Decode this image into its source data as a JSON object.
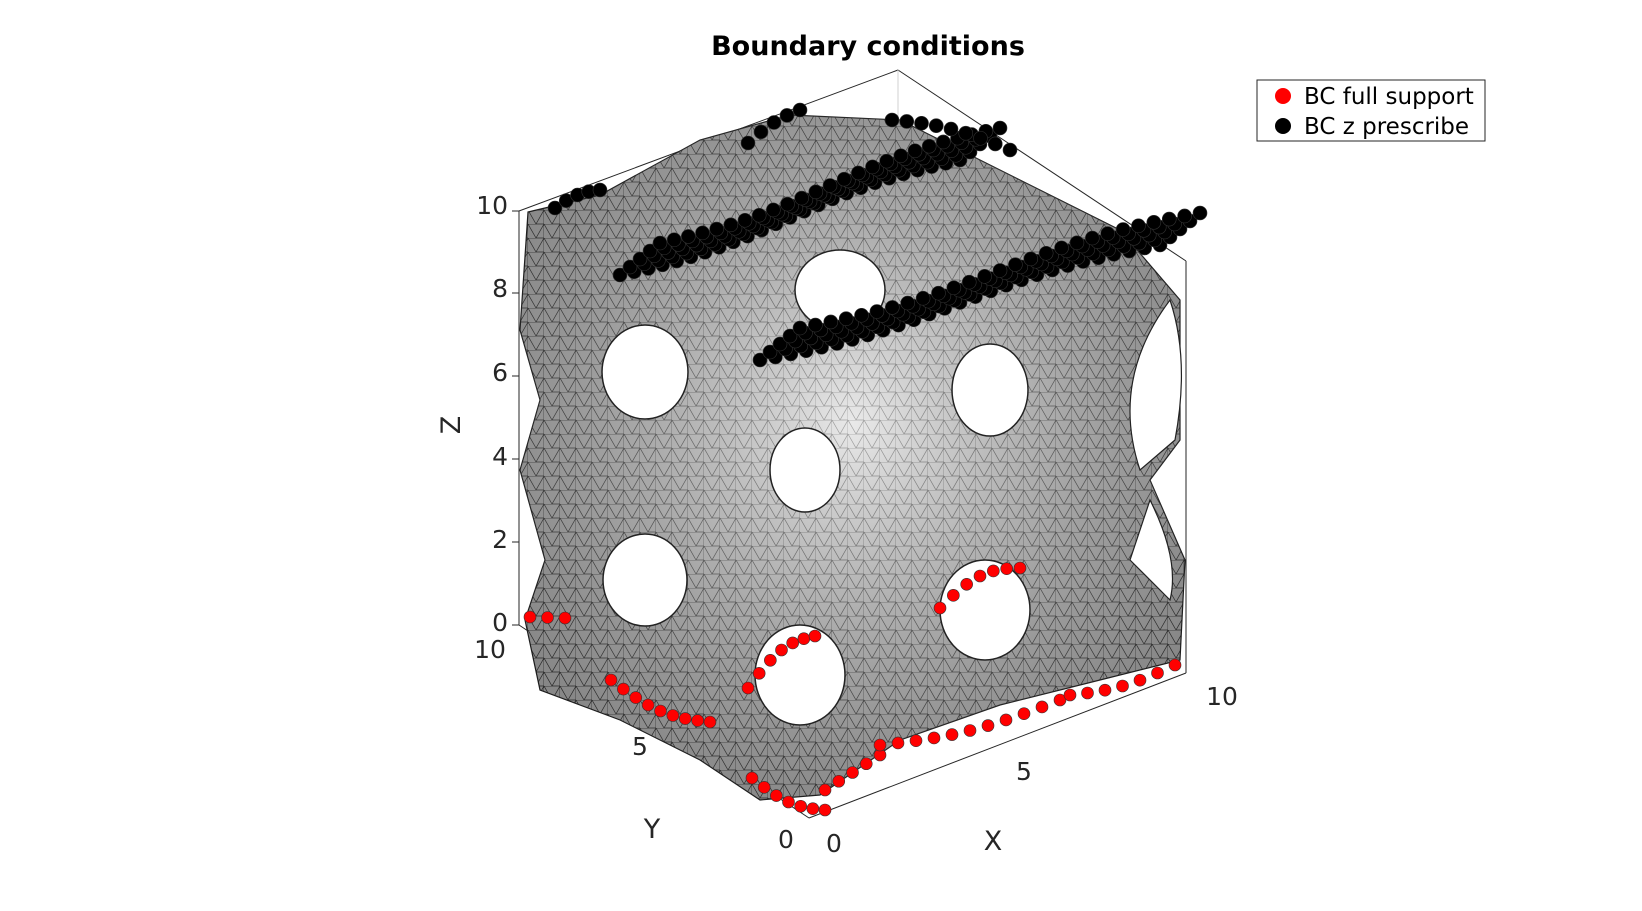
{
  "chart_data": {
    "type": "scatter3d",
    "title": "Boundary conditions",
    "xlabel": "X",
    "ylabel": "Y",
    "zlabel": "Z",
    "xlim": [
      0,
      10
    ],
    "ylim": [
      0,
      10
    ],
    "zlim": [
      0,
      10
    ],
    "xticks": [
      "0",
      "5",
      "10"
    ],
    "yticks": [
      "0",
      "5",
      "10"
    ],
    "zticks": [
      "0",
      "2",
      "4",
      "6",
      "8",
      "10"
    ],
    "grid": true,
    "legend_location": "top-right",
    "surface": {
      "type": "gyroid-like lattice mesh",
      "face_color": "#d9d9d9",
      "edge_color": "#000000"
    },
    "series": [
      {
        "name": "BC full support",
        "color": "#ff0000",
        "z": 0,
        "description_points": "nodes on the bottom face (z = 0)"
      },
      {
        "name": "BC z prescribe",
        "color": "#000000",
        "z": 10,
        "description_points": "nodes on the top face (z = 10)"
      }
    ]
  }
}
